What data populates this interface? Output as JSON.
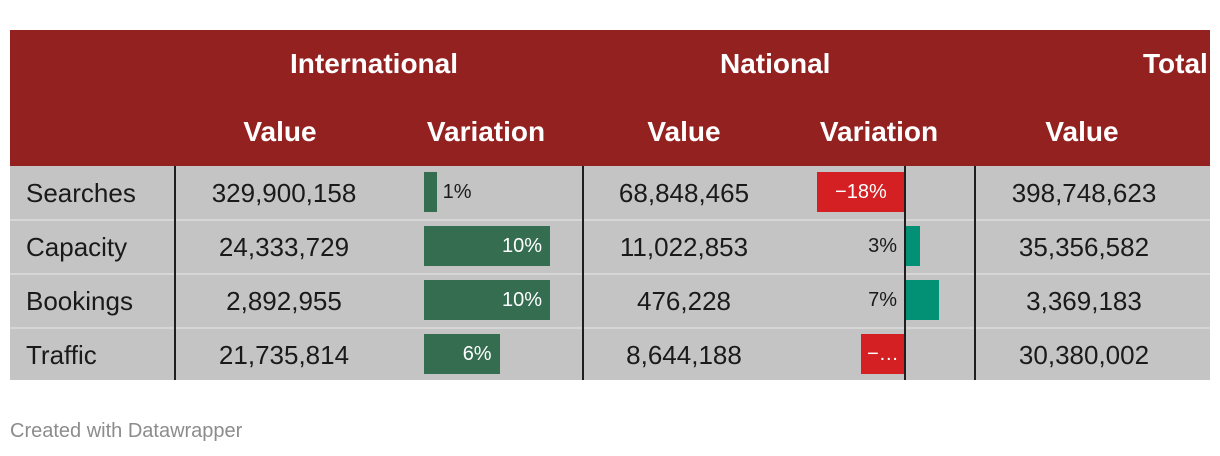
{
  "chart_data": {
    "type": "table",
    "column_groups": [
      "International",
      "National",
      "Total"
    ],
    "columns": [
      "Value",
      "Variation",
      "Value",
      "Variation",
      "Value"
    ],
    "rows": [
      {
        "label": "Searches",
        "intl_value": "329,900,158",
        "intl_variation": 1,
        "intl_variation_label": "1%",
        "nat_value": "68,848,465",
        "nat_variation": -18,
        "nat_variation_label": "−18%",
        "total_value": "398,748,623"
      },
      {
        "label": "Capacity",
        "intl_value": "24,333,729",
        "intl_variation": 10,
        "intl_variation_label": "10%",
        "nat_value": "11,022,853",
        "nat_variation": 3,
        "nat_variation_label": "3%",
        "total_value": "35,356,582"
      },
      {
        "label": "Bookings",
        "intl_value": "2,892,955",
        "intl_variation": 10,
        "intl_variation_label": "10%",
        "nat_value": "476,228",
        "nat_variation": 7,
        "nat_variation_label": "7%",
        "total_value": "3,369,183"
      },
      {
        "label": "Traffic",
        "intl_value": "21,735,814",
        "intl_variation": 6,
        "intl_variation_label": "6%",
        "nat_value": "8,644,188",
        "nat_variation": -9,
        "nat_variation_label": "−…",
        "total_value": "30,380,002"
      }
    ],
    "colors": {
      "header": "#932120",
      "body": "#c4c4c4",
      "intl_bar": "#356d50",
      "nat_positive": "#039176",
      "negative": "#d42022"
    }
  },
  "footer": {
    "credit": "Created with Datawrapper"
  }
}
